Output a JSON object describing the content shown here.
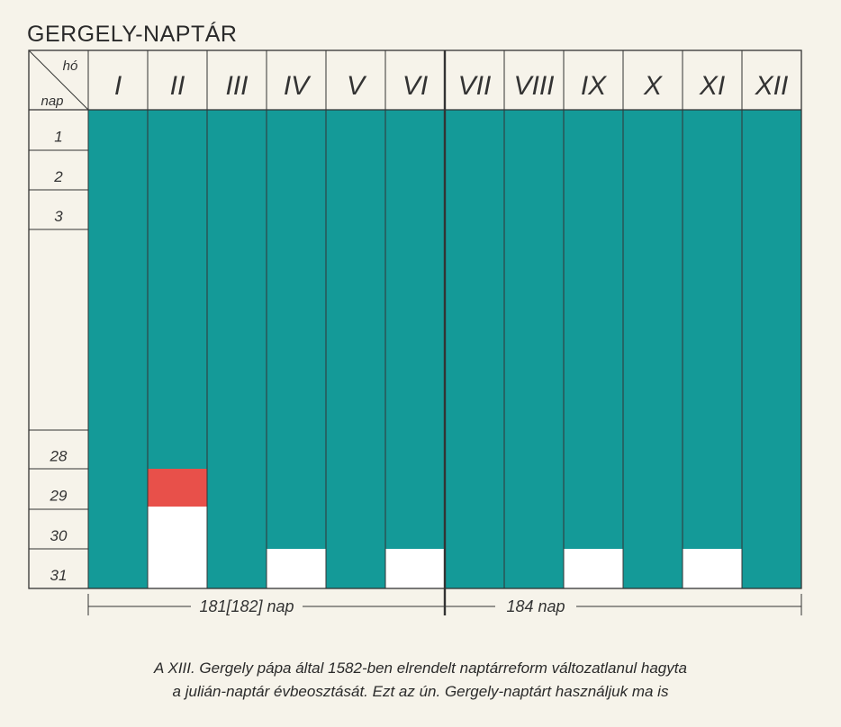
{
  "title": "GERGELY-NAPTÁR",
  "header": {
    "month_label": "hó",
    "day_label": "nap"
  },
  "months": [
    {
      "label": "I",
      "days": 31
    },
    {
      "label": "II",
      "days": 28,
      "leap_day": true
    },
    {
      "label": "III",
      "days": 31
    },
    {
      "label": "IV",
      "days": 30
    },
    {
      "label": "V",
      "days": 31
    },
    {
      "label": "VI",
      "days": 30
    },
    {
      "label": "VII",
      "days": 31
    },
    {
      "label": "VIII",
      "days": 31
    },
    {
      "label": "IX",
      "days": 30
    },
    {
      "label": "X",
      "days": 31
    },
    {
      "label": "XI",
      "days": 30
    },
    {
      "label": "XII",
      "days": 31
    }
  ],
  "day_rows": [
    "1",
    "2",
    "3",
    "",
    "28",
    "29",
    "30",
    "31"
  ],
  "spans": {
    "first_half": "181[182] nap",
    "second_half": "184 nap"
  },
  "caption": {
    "line1": "A XIII. Gergely pápa által 1582-ben elrendelt naptárreform változatlanul hagyta",
    "line2": "a julián-naptár évbeosztását. Ezt az ún. Gergely-naptárt használjuk ma is"
  },
  "colors": {
    "filled": "#149a98",
    "leap": "#e8504a",
    "empty": "#ffffff",
    "line": "#333333"
  }
}
